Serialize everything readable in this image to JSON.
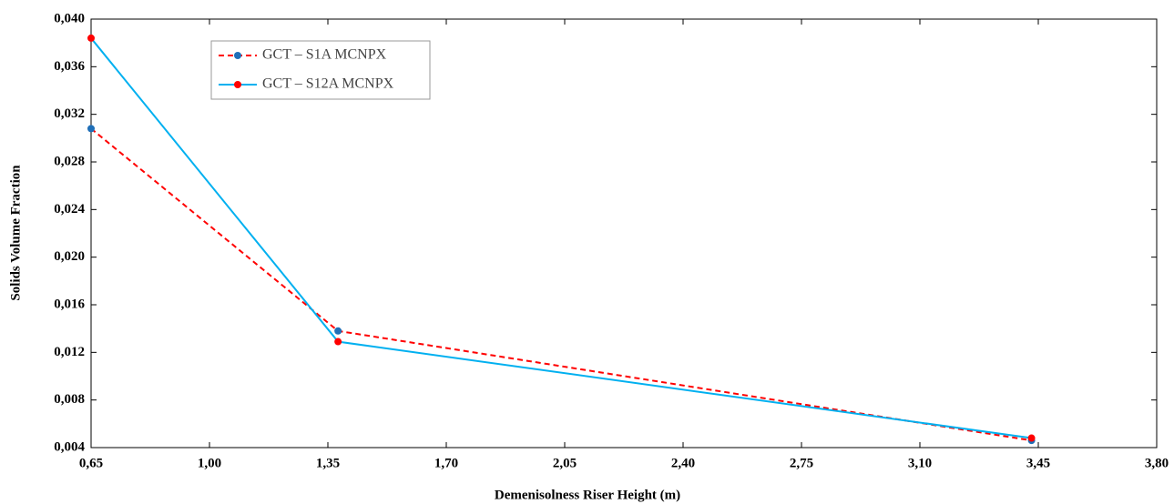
{
  "chart_data": {
    "type": "line",
    "x_label": "Demenisolness Riser Height (m)",
    "y_label": "Solids Volume Fraction",
    "series": [
      {
        "name": "GCT – S1A MCNPX",
        "color": "#ff0000",
        "marker_color": "#1f6fb8",
        "dashed": true,
        "x": [
          0.65,
          1.38,
          3.43
        ],
        "values": [
          0.0308,
          0.0138,
          0.0046
        ]
      },
      {
        "name": "GCT – S12A MCNPX",
        "color": "#00b0f0",
        "marker_color": "#ff0000",
        "dashed": false,
        "x": [
          0.65,
          1.38,
          3.43
        ],
        "values": [
          0.0384,
          0.0129,
          0.0048
        ]
      }
    ],
    "xlim": [
      0.65,
      3.8
    ],
    "xticks": [
      {
        "value": 0.65,
        "label": "0,65"
      },
      {
        "value": 1.0,
        "label": "1,00"
      },
      {
        "value": 1.35,
        "label": "1,35"
      },
      {
        "value": 1.7,
        "label": "1,70"
      },
      {
        "value": 2.05,
        "label": "2,05"
      },
      {
        "value": 2.4,
        "label": "2,40"
      },
      {
        "value": 2.75,
        "label": "2,75"
      },
      {
        "value": 3.1,
        "label": "3,10"
      },
      {
        "value": 3.45,
        "label": "3,45"
      },
      {
        "value": 3.8,
        "label": "3,80"
      }
    ],
    "ylim": [
      0.004,
      0.04
    ],
    "yticks": [
      {
        "value": 0.004,
        "label": "0,004"
      },
      {
        "value": 0.008,
        "label": "0,008"
      },
      {
        "value": 0.012,
        "label": "0,012"
      },
      {
        "value": 0.016,
        "label": "0,016"
      },
      {
        "value": 0.02,
        "label": "0,020"
      },
      {
        "value": 0.024,
        "label": "0,024"
      },
      {
        "value": 0.028,
        "label": "0,028"
      },
      {
        "value": 0.032,
        "label": "0,032"
      },
      {
        "value": 0.036,
        "label": "0,036"
      },
      {
        "value": 0.04,
        "label": "0,040"
      }
    ],
    "grid": false,
    "legend": "top-left"
  }
}
